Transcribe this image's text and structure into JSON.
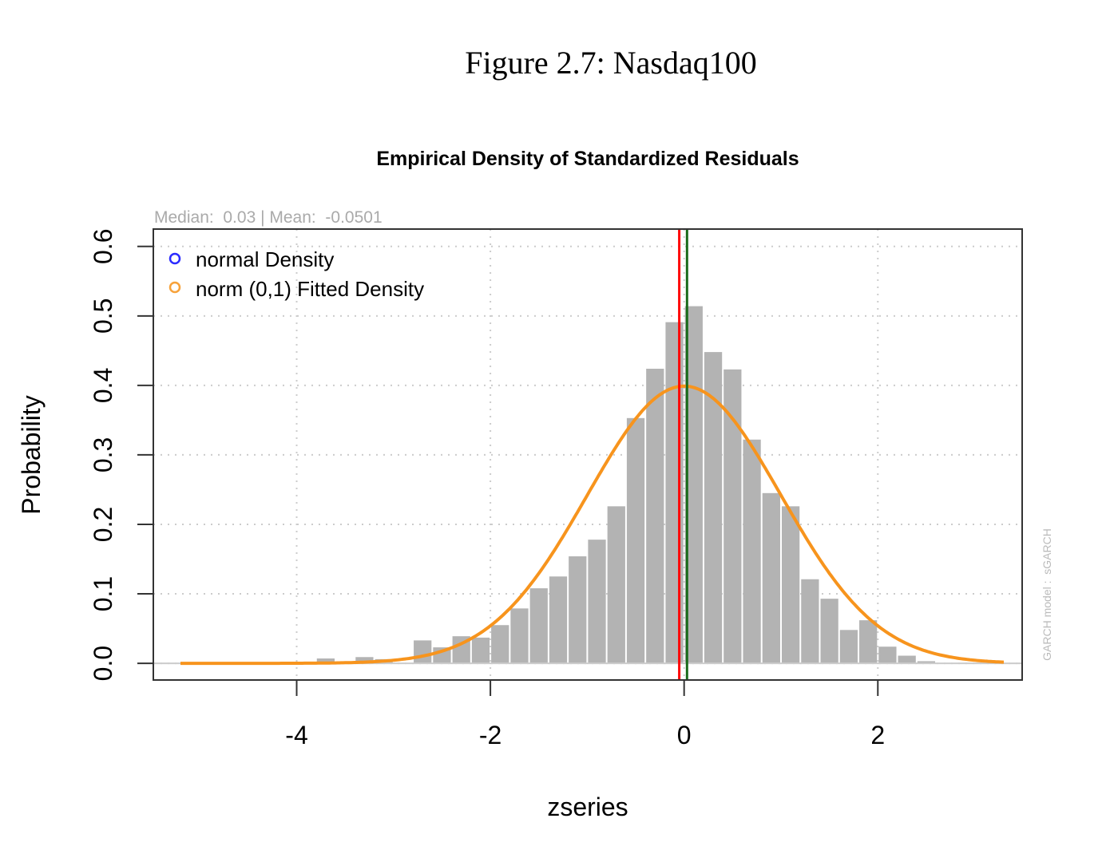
{
  "figure_caption": "Figure 2.7: Nasdaq100",
  "chart_data": {
    "type": "bar",
    "title": "Empirical Density of Standardized Residuals",
    "subtitle": "Median:  0.03 | Mean:  -0.0501",
    "xlabel": "zseries",
    "ylabel": "Probability",
    "side_note": "GARCH model :  sGARCH",
    "xlim": [
      -5.48,
      3.49
    ],
    "ylim": [
      -0.024,
      0.625
    ],
    "xticks": [
      -4,
      -2,
      0,
      2
    ],
    "xtick_labels": [
      "-4",
      "-2",
      "0",
      "2"
    ],
    "yticks": [
      0,
      0.1,
      0.2,
      0.3,
      0.4,
      0.5,
      0.6
    ],
    "ytick_labels": [
      "0.0",
      "0.1",
      "0.2",
      "0.3",
      "0.4",
      "0.5",
      "0.6"
    ],
    "grid": true,
    "bin_width": 0.2,
    "bin_starts": [
      -3.8,
      -3.6,
      -3.4,
      -3.2,
      -3.0,
      -2.8,
      -2.6,
      -2.4,
      -2.2,
      -2.0,
      -1.8,
      -1.6,
      -1.4,
      -1.2,
      -1.0,
      -0.8,
      -0.6,
      -0.4,
      -0.2,
      0.0,
      0.2,
      0.4,
      0.6,
      0.8,
      1.0,
      1.2,
      1.4,
      1.6,
      1.8,
      2.0,
      2.2,
      2.4
    ],
    "values": [
      0.007,
      0.002,
      0.009,
      0.006,
      0.0,
      0.033,
      0.023,
      0.039,
      0.037,
      0.055,
      0.079,
      0.108,
      0.125,
      0.154,
      0.178,
      0.226,
      0.353,
      0.424,
      0.491,
      0.514,
      0.448,
      0.423,
      0.322,
      0.245,
      0.226,
      0.121,
      0.093,
      0.048,
      0.062,
      0.024,
      0.011,
      0.003
    ],
    "fitted_curve": {
      "name": "norm (0,1) Fitted Density",
      "mean": 0,
      "sd": 1,
      "from": -5.2,
      "to": 3.3,
      "color": "#f7941d"
    },
    "median": 0.03,
    "mean": -0.0501,
    "median_color": "#1a6b1a",
    "mean_color": "#ff0000",
    "bar_color": "#b3b3b3",
    "legend": {
      "placement": "top-left",
      "entries": [
        {
          "label": "normal Density",
          "color": "#2b2bff"
        },
        {
          "label": "norm (0,1) Fitted Density",
          "color": "#f7a23a"
        }
      ]
    }
  }
}
